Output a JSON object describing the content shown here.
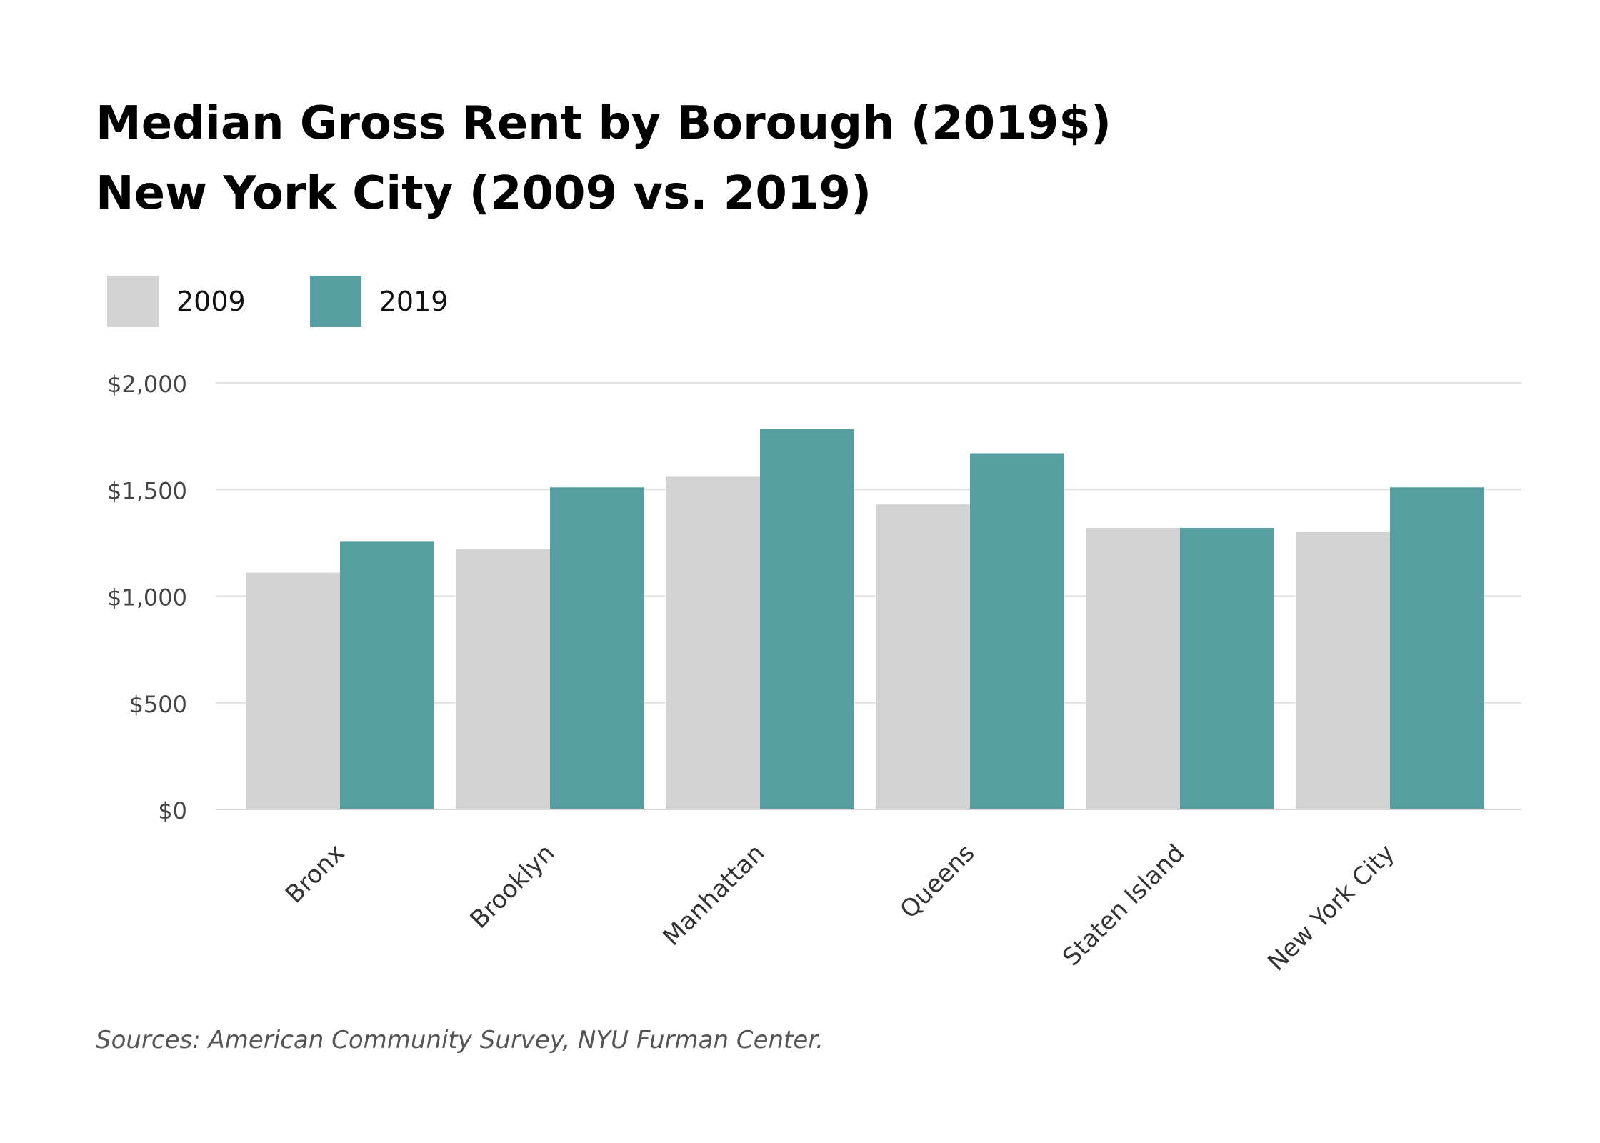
{
  "title": {
    "line1": "Median Gross Rent by Borough (2019$)",
    "line2": "New York City (2009 vs. 2019)"
  },
  "legend": [
    {
      "label": "2009",
      "color": "#d3d3d3"
    },
    {
      "label": "2019",
      "color": "#569ea0"
    }
  ],
  "source": "Sources: American Community Survey, NYU Furman Center.",
  "chart_data": {
    "type": "bar",
    "categories": [
      "Bronx",
      "Brooklyn",
      "Manhattan",
      "Queens",
      "Staten Island",
      "New York City"
    ],
    "series": [
      {
        "name": "2009",
        "color": "#d3d3d3",
        "values": [
          1110,
          1220,
          1560,
          1430,
          1320,
          1300
        ]
      },
      {
        "name": "2019",
        "color": "#569ea0",
        "values": [
          1255,
          1510,
          1785,
          1670,
          1320,
          1510
        ]
      }
    ],
    "ylim": [
      0,
      2000
    ],
    "yticks": [
      0,
      500,
      1000,
      1500,
      2000
    ],
    "ytick_labels": [
      "$0",
      "$500",
      "$1,000",
      "$1,500",
      "$2,000"
    ],
    "grid": true,
    "legend_position": "top-left"
  }
}
